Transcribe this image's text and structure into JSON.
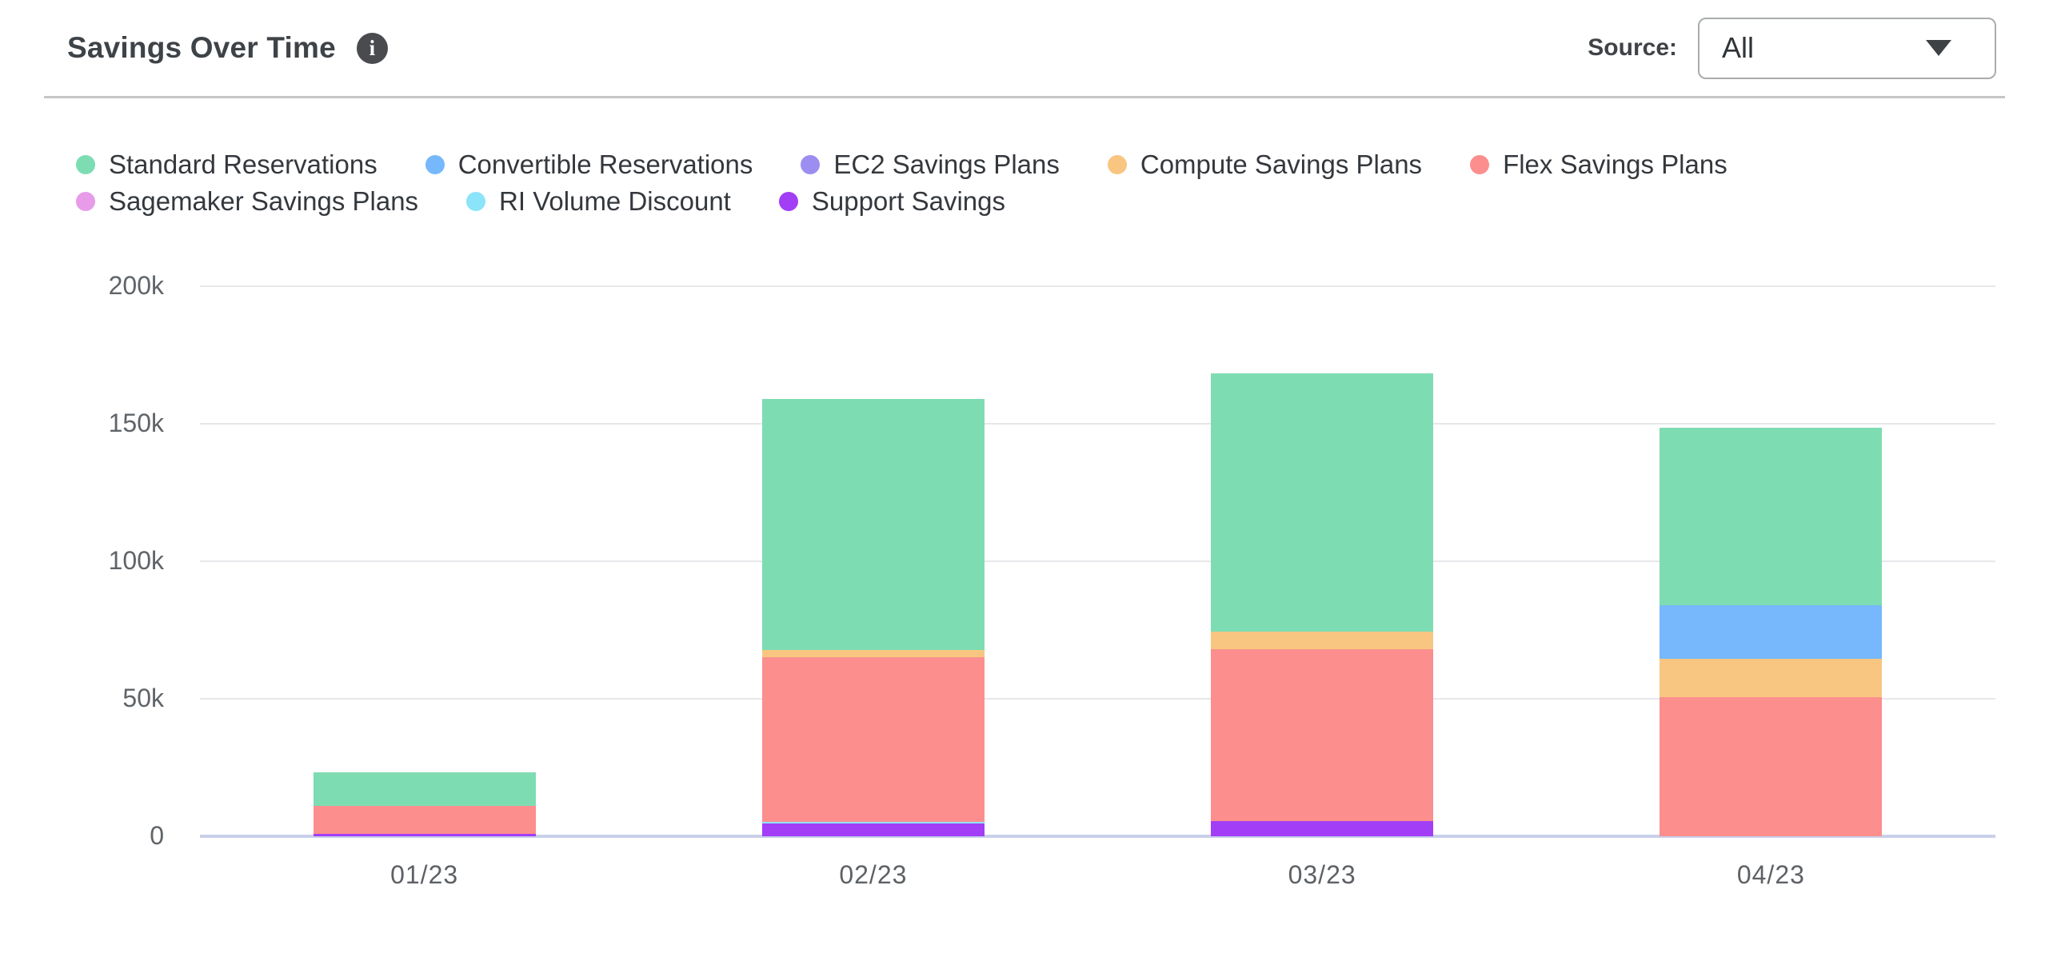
{
  "header": {
    "title": "Savings Over Time",
    "info_icon": "i",
    "source_label": "Source:",
    "source_value": "All"
  },
  "chart_data": {
    "type": "bar",
    "stacked": true,
    "title": "Savings Over Time",
    "categories": [
      "01/23",
      "02/23",
      "03/23",
      "04/23"
    ],
    "series": [
      {
        "name": "Standard Reservations",
        "color": "#7edcb2",
        "values": [
          12300,
          91300,
          93900,
          64500
        ]
      },
      {
        "name": "Convertible Reservations",
        "color": "#76b8fb",
        "values": [
          0,
          0,
          0,
          19500
        ]
      },
      {
        "name": "EC2 Savings Plans",
        "color": "#9c8df1",
        "values": [
          0,
          0,
          0,
          0
        ]
      },
      {
        "name": "Compute Savings Plans",
        "color": "#f8c681",
        "values": [
          0,
          2600,
          6500,
          14000
        ]
      },
      {
        "name": "Flex Savings Plans",
        "color": "#fc8e8e",
        "values": [
          10000,
          60000,
          62600,
          50500
        ]
      },
      {
        "name": "Sagemaker Savings Plans",
        "color": "#e79be8",
        "values": [
          0,
          0,
          0,
          0
        ]
      },
      {
        "name": "RI Volume Discount",
        "color": "#8be4f9",
        "values": [
          0,
          700,
          0,
          0
        ]
      },
      {
        "name": "Support Savings",
        "color": "#a13ef6",
        "values": [
          900,
          4500,
          5400,
          0
        ]
      }
    ],
    "stack_order_bottom_to_top": [
      "Support Savings",
      "RI Volume Discount",
      "Flex Savings Plans",
      "Compute Savings Plans",
      "Convertible Reservations",
      "Standard Reservations",
      "EC2 Savings Plans",
      "Sagemaker Savings Plans"
    ],
    "y_axis": {
      "ticks": [
        {
          "value": 0,
          "label": "0"
        },
        {
          "value": 50000,
          "label": "50k"
        },
        {
          "value": 100000,
          "label": "100k"
        },
        {
          "value": 150000,
          "label": "150k"
        },
        {
          "value": 200000,
          "label": "200k"
        }
      ],
      "max": 208000
    },
    "xlabel": "",
    "ylabel": "",
    "grid": true,
    "legend_position": "top-left",
    "grid_color": "#e6e7ea",
    "axis_line_color": "#c9d0ea"
  }
}
